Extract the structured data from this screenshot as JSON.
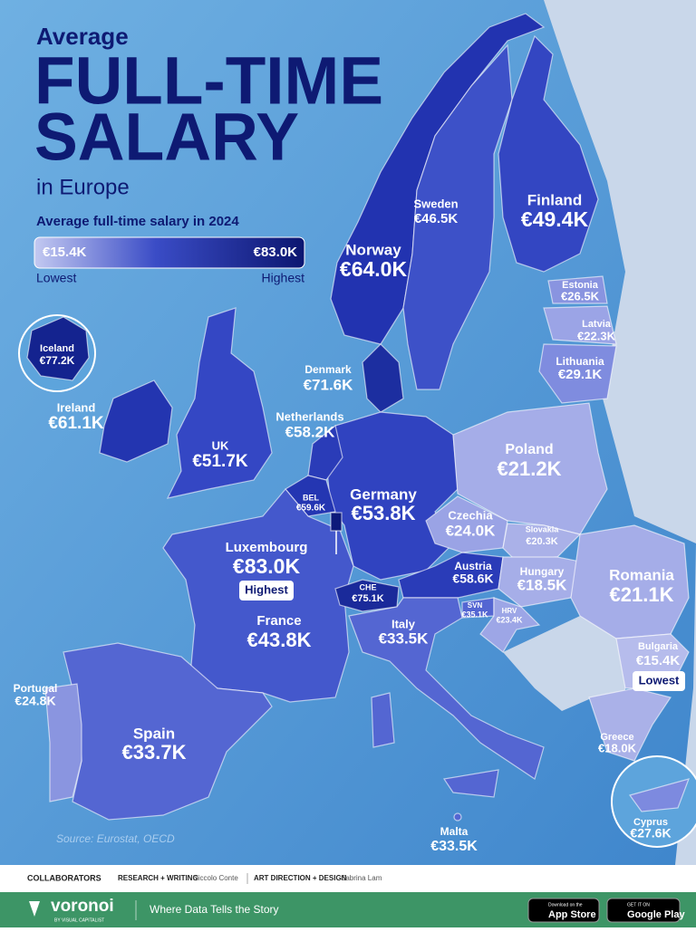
{
  "header": {
    "kicker": "Average",
    "title_line1": "FULL-TIME",
    "title_line2": "SALARY",
    "suffix": "in Europe",
    "subtitle": "Average full-time salary in 2024"
  },
  "legend": {
    "min": "€15.4K",
    "max": "€83.0K",
    "low": "Lowest",
    "high": "Highest"
  },
  "countries": [
    {
      "name": "Iceland",
      "value": "€77.2K"
    },
    {
      "name": "Ireland",
      "value": "€61.1K"
    },
    {
      "name": "UK",
      "value": "€51.7K"
    },
    {
      "name": "Norway",
      "value": "€64.0K"
    },
    {
      "name": "Sweden",
      "value": "€46.5K"
    },
    {
      "name": "Finland",
      "value": "€49.4K"
    },
    {
      "name": "Estonia",
      "value": "€26.5K"
    },
    {
      "name": "Latvia",
      "value": "€22.3K"
    },
    {
      "name": "Lithuania",
      "value": "€29.1K"
    },
    {
      "name": "Denmark",
      "value": "€71.6K"
    },
    {
      "name": "Netherlands",
      "value": "€58.2K"
    },
    {
      "name": "Poland",
      "value": "€21.2K"
    },
    {
      "name": "Germany",
      "value": "€53.8K"
    },
    {
      "name": "BEL",
      "value": "€59.6K"
    },
    {
      "name": "Czechia",
      "value": "€24.0K"
    },
    {
      "name": "Slovakia",
      "value": "€20.3K"
    },
    {
      "name": "Luxembourg",
      "value": "€83.0K"
    },
    {
      "name": "Austria",
      "value": "€58.6K"
    },
    {
      "name": "Hungary",
      "value": "€18.5K"
    },
    {
      "name": "Romania",
      "value": "€21.1K"
    },
    {
      "name": "CHE",
      "value": "€75.1K"
    },
    {
      "name": "SVN",
      "value": "€35.1K"
    },
    {
      "name": "HRV",
      "value": "€23.4K"
    },
    {
      "name": "France",
      "value": "€43.8K"
    },
    {
      "name": "Italy",
      "value": "€33.5K"
    },
    {
      "name": "Bulgaria",
      "value": "€15.4K"
    },
    {
      "name": "Portugal",
      "value": "€24.8K"
    },
    {
      "name": "Spain",
      "value": "€33.7K"
    },
    {
      "name": "Greece",
      "value": "€18.0K"
    },
    {
      "name": "Malta",
      "value": "€33.5K"
    },
    {
      "name": "Cyprus",
      "value": "€27.6K"
    }
  ],
  "badges": {
    "highest": "Highest",
    "lowest": "Lowest"
  },
  "source": "Source: Eurostat, OECD",
  "footer": {
    "collaborators": "COLLABORATORS",
    "research_role": "RESEARCH + WRITING",
    "research_name": "Niccolo Conte",
    "design_role": "ART DIRECTION + DESIGN",
    "design_name": "Sabrina Lam",
    "brand": "voronoi",
    "brand_sub": "BY VISUAL CAPITALIST",
    "tagline": "Where Data Tells the Story",
    "appstore_small": "Download on the",
    "appstore": "App Store",
    "googleplay_small": "GET IT ON",
    "googleplay": "Google Play"
  }
}
